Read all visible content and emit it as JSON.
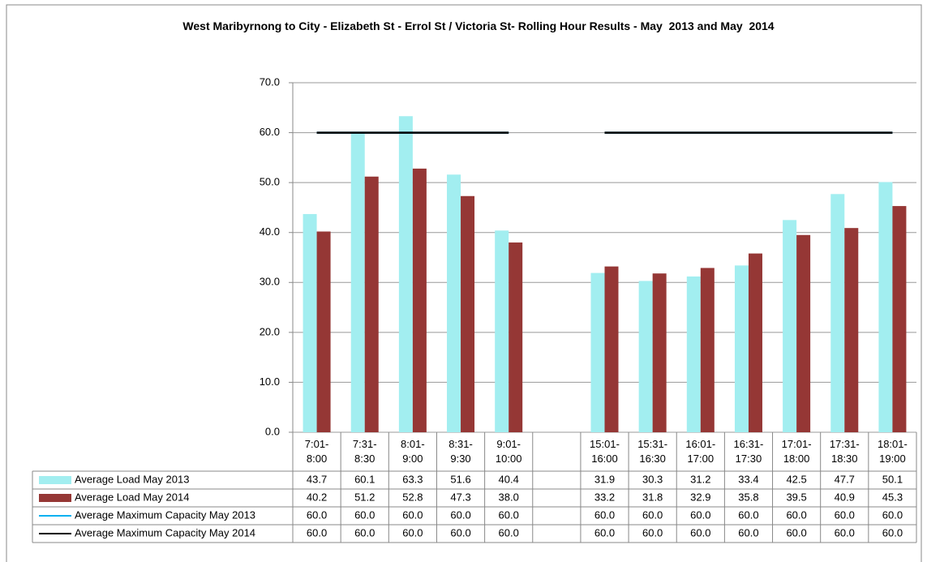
{
  "chart_data": {
    "type": "bar",
    "title": "West Maribyrnong to City - Elizabeth St - Errol St / Victoria St- Rolling Hour Results - May  2013 and May  2014",
    "categories": [
      "7:01-\n8:00",
      "7:31-\n8:30",
      "8:01-\n9:00",
      "8:31-\n9:30",
      "9:01-\n10:00",
      null,
      "15:01-\n16:00",
      "15:31-\n16:30",
      "16:01-\n17:00",
      "16:31-\n17:30",
      "17:01-\n18:00",
      "17:31-\n18:30",
      "18:01-\n19:00"
    ],
    "series": [
      {
        "name": "Average Load May 2013",
        "type": "bar",
        "color": "#a2eef0",
        "values": [
          43.7,
          60.1,
          63.3,
          51.6,
          40.4,
          null,
          31.9,
          30.3,
          31.2,
          33.4,
          42.5,
          47.7,
          50.1
        ],
        "value_labels": [
          "43.7",
          "60.1",
          "63.3",
          "51.6",
          "40.4",
          null,
          "31.9",
          "30.3",
          "31.2",
          "33.4",
          "42.5",
          "47.7",
          "50.1"
        ]
      },
      {
        "name": "Average Load May 2014",
        "type": "bar",
        "color": "#953735",
        "values": [
          40.2,
          51.2,
          52.8,
          47.3,
          38,
          null,
          33.2,
          31.8,
          32.9,
          35.8,
          39.5,
          40.9,
          45.3
        ],
        "value_labels": [
          "40.2",
          "51.2",
          "52.8",
          "47.3",
          "38.0",
          null,
          "33.2",
          "31.8",
          "32.9",
          "35.8",
          "39.5",
          "40.9",
          "45.3"
        ]
      },
      {
        "name": "Average Maximum Capacity May 2013",
        "type": "line",
        "color": "#00b0f0",
        "values": [
          60,
          60,
          60,
          60,
          60,
          null,
          60,
          60,
          60,
          60,
          60,
          60,
          60
        ],
        "value_labels": [
          "60.0",
          "60.0",
          "60.0",
          "60.0",
          "60.0",
          null,
          "60.0",
          "60.0",
          "60.0",
          "60.0",
          "60.0",
          "60.0",
          "60.0"
        ]
      },
      {
        "name": "Average Maximum Capacity May 2014",
        "type": "line",
        "color": "#000000",
        "values": [
          60,
          60,
          60,
          60,
          60,
          null,
          60,
          60,
          60,
          60,
          60,
          60,
          60
        ],
        "value_labels": [
          "60.0",
          "60.0",
          "60.0",
          "60.0",
          "60.0",
          null,
          "60.0",
          "60.0",
          "60.0",
          "60.0",
          "60.0",
          "60.0",
          "60.0"
        ]
      }
    ],
    "ylim": [
      0,
      70
    ],
    "yticks": [
      {
        "value": 0,
        "label": "0.0"
      },
      {
        "value": 10,
        "label": "10.0"
      },
      {
        "value": 20,
        "label": "20.0"
      },
      {
        "value": 30,
        "label": "30.0"
      },
      {
        "value": 40,
        "label": "40.0"
      },
      {
        "value": 50,
        "label": "50.0"
      },
      {
        "value": 60,
        "label": "60.0"
      },
      {
        "value": 70,
        "label": "70.0"
      }
    ],
    "grid": true
  }
}
